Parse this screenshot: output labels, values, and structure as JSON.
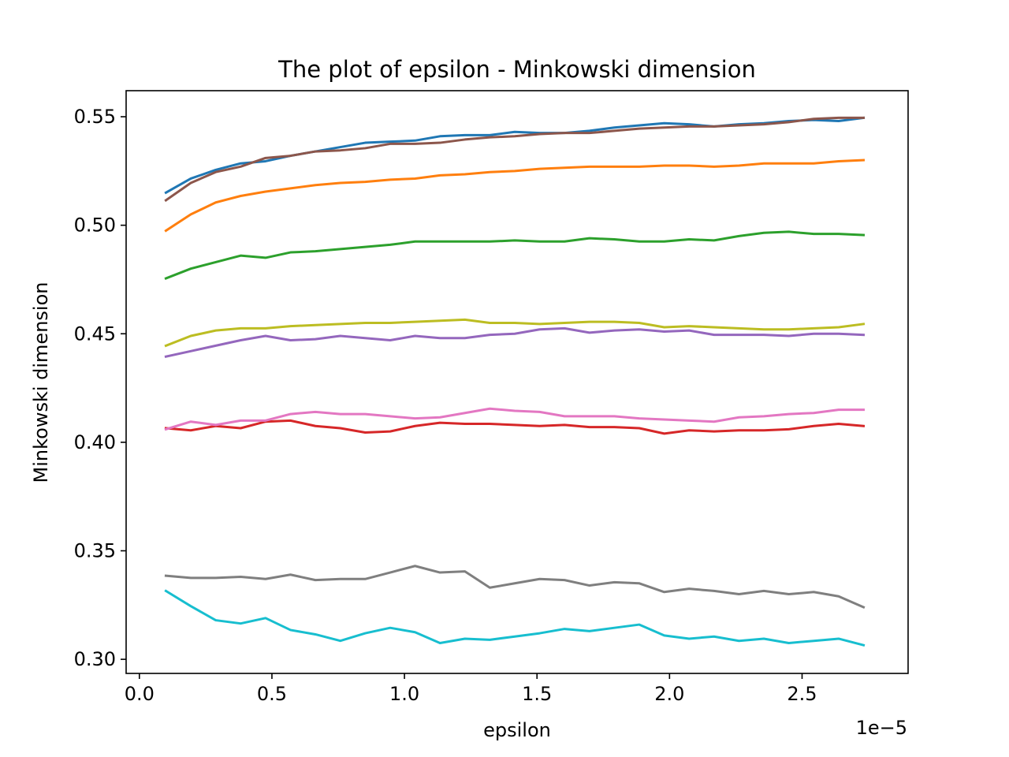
{
  "chart_data": {
    "type": "line",
    "title": "The plot of epsilon - Minkowski dimension",
    "xlabel": "epsilon",
    "ylabel": "Minkowski dimension",
    "x_offset_text": "1e−5",
    "x_scale": 1e-05,
    "xlim": [
      -5e-07,
      2.9e-05
    ],
    "ylim": [
      0.2935,
      0.562
    ],
    "grid": false,
    "legend": "none",
    "x_ticks": [
      0,
      5e-06,
      1e-05,
      1.5e-05,
      2e-05,
      2.5e-05
    ],
    "x_tick_labels": [
      "0.0",
      "0.5",
      "1.0",
      "1.5",
      "2.0",
      "2.5"
    ],
    "y_ticks": [
      0.3,
      0.35,
      0.4,
      0.45,
      0.5,
      0.55
    ],
    "y_tick_labels": [
      "0.30",
      "0.35",
      "0.40",
      "0.45",
      "0.50",
      "0.55"
    ],
    "x": [
      1e-06,
      1.94e-06,
      2.88e-06,
      3.82e-06,
      4.76e-06,
      5.7e-06,
      6.64e-06,
      7.58e-06,
      8.52e-06,
      9.46e-06,
      1.04e-05,
      1.134e-05,
      1.228e-05,
      1.322e-05,
      1.416e-05,
      1.51e-05,
      1.604e-05,
      1.698e-05,
      1.792e-05,
      1.886e-05,
      1.98e-05,
      2.074e-05,
      2.168e-05,
      2.262e-05,
      2.356e-05,
      2.45e-05,
      2.544e-05,
      2.638e-05,
      2.732e-05
    ],
    "series": [
      {
        "color": "#1f77b4",
        "values": [
          0.515,
          0.5215,
          0.5255,
          0.5285,
          0.5295,
          0.532,
          0.534,
          0.536,
          0.538,
          0.5385,
          0.539,
          0.541,
          0.5415,
          0.5415,
          0.543,
          0.5425,
          0.5425,
          0.5435,
          0.545,
          0.546,
          0.547,
          0.5465,
          0.5455,
          0.5465,
          0.547,
          0.548,
          0.5485,
          0.548,
          0.5495
        ]
      },
      {
        "color": "#ff7f0e",
        "values": [
          0.4975,
          0.505,
          0.5105,
          0.5135,
          0.5155,
          0.517,
          0.5185,
          0.5195,
          0.52,
          0.521,
          0.5215,
          0.523,
          0.5235,
          0.5245,
          0.525,
          0.526,
          0.5265,
          0.527,
          0.527,
          0.527,
          0.5275,
          0.5275,
          0.527,
          0.5275,
          0.5285,
          0.5285,
          0.5285,
          0.5295,
          0.53
        ]
      },
      {
        "color": "#2ca02c",
        "values": [
          0.4755,
          0.48,
          0.483,
          0.486,
          0.485,
          0.4875,
          0.488,
          0.489,
          0.49,
          0.491,
          0.4925,
          0.4925,
          0.4925,
          0.4925,
          0.493,
          0.4925,
          0.4925,
          0.494,
          0.4935,
          0.4925,
          0.4925,
          0.4935,
          0.493,
          0.495,
          0.4965,
          0.497,
          0.496,
          0.496,
          0.4955
        ]
      },
      {
        "color": "#d62728",
        "values": [
          0.4065,
          0.4055,
          0.4075,
          0.4065,
          0.4095,
          0.41,
          0.4075,
          0.4065,
          0.4045,
          0.405,
          0.4075,
          0.409,
          0.4085,
          0.4085,
          0.408,
          0.4075,
          0.408,
          0.407,
          0.407,
          0.4065,
          0.404,
          0.4055,
          0.405,
          0.4055,
          0.4055,
          0.406,
          0.4075,
          0.4085,
          0.4075
        ]
      },
      {
        "color": "#9467bd",
        "values": [
          0.4395,
          0.442,
          0.4445,
          0.447,
          0.449,
          0.447,
          0.4475,
          0.449,
          0.448,
          0.447,
          0.449,
          0.448,
          0.448,
          0.4495,
          0.45,
          0.452,
          0.4525,
          0.4505,
          0.4515,
          0.452,
          0.451,
          0.4515,
          0.4495,
          0.4495,
          0.4495,
          0.449,
          0.45,
          0.45,
          0.4495
        ]
      },
      {
        "color": "#8c564b",
        "values": [
          0.5115,
          0.5195,
          0.5245,
          0.527,
          0.531,
          0.532,
          0.534,
          0.5345,
          0.5355,
          0.5375,
          0.5375,
          0.538,
          0.5395,
          0.5405,
          0.541,
          0.542,
          0.5425,
          0.5425,
          0.5435,
          0.5445,
          0.545,
          0.5455,
          0.5455,
          0.546,
          0.5465,
          0.5475,
          0.549,
          0.5495,
          0.5495
        ]
      },
      {
        "color": "#e377c2",
        "values": [
          0.406,
          0.4095,
          0.408,
          0.41,
          0.41,
          0.413,
          0.414,
          0.413,
          0.413,
          0.412,
          0.411,
          0.4115,
          0.4135,
          0.4155,
          0.4145,
          0.414,
          0.412,
          0.412,
          0.412,
          0.411,
          0.4105,
          0.41,
          0.4095,
          0.4115,
          0.412,
          0.413,
          0.4135,
          0.415,
          0.415
        ]
      },
      {
        "color": "#7f7f7f",
        "values": [
          0.3385,
          0.3375,
          0.3375,
          0.338,
          0.337,
          0.339,
          0.3365,
          0.337,
          0.337,
          0.34,
          0.343,
          0.34,
          0.3405,
          0.333,
          0.335,
          0.337,
          0.3365,
          0.334,
          0.3355,
          0.335,
          0.331,
          0.3325,
          0.3315,
          0.33,
          0.3315,
          0.33,
          0.331,
          0.329,
          0.324
        ]
      },
      {
        "color": "#bcbd22",
        "values": [
          0.4445,
          0.449,
          0.4515,
          0.4525,
          0.4525,
          0.4535,
          0.454,
          0.4545,
          0.455,
          0.455,
          0.4555,
          0.456,
          0.4565,
          0.455,
          0.455,
          0.4545,
          0.455,
          0.4555,
          0.4555,
          0.455,
          0.453,
          0.4535,
          0.453,
          0.4525,
          0.452,
          0.452,
          0.4525,
          0.453,
          0.4545
        ]
      },
      {
        "color": "#17becf",
        "values": [
          0.3315,
          0.3245,
          0.318,
          0.3165,
          0.319,
          0.3135,
          0.3115,
          0.3085,
          0.312,
          0.3145,
          0.3125,
          0.3075,
          0.3095,
          0.309,
          0.3105,
          0.312,
          0.314,
          0.313,
          0.3145,
          0.316,
          0.311,
          0.3095,
          0.3105,
          0.3085,
          0.3095,
          0.3075,
          0.3085,
          0.3095,
          0.3065
        ]
      }
    ]
  }
}
